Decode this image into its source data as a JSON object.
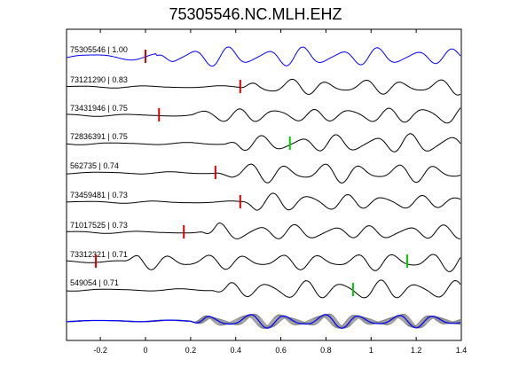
{
  "figure": {
    "title": "75305546.NC.MLH.EHZ"
  },
  "colors": {
    "reference_trace": "#0000ff",
    "trace": "#000000",
    "stack_trace": "#808080",
    "pick_red": "#dd0000",
    "pick_green": "#00cc00"
  },
  "chart_data": {
    "type": "line",
    "title": "75305546.NC.MLH.EHZ",
    "xlabel": "",
    "ylabel": "",
    "xlim": [
      -0.35,
      1.4
    ],
    "x_ticks": [
      -0.2,
      0,
      0.2,
      0.4,
      0.6,
      0.8,
      1.0,
      1.2,
      1.4
    ],
    "x_tick_labels": [
      "-0.2",
      "0",
      "0.2",
      "0.4",
      "0.6",
      "0.8",
      "1",
      "1.2",
      "1.4"
    ],
    "grid": false,
    "series": [
      {
        "label": "75305546 | 1.00",
        "event_id": "75305546",
        "correlation": 1.0,
        "pick_time": 0.0,
        "pick_color": "red"
      },
      {
        "label": "73121290 | 0.83",
        "event_id": "73121290",
        "correlation": 0.83,
        "pick_time": 0.42,
        "pick_color": "red"
      },
      {
        "label": "73431946 | 0.75",
        "event_id": "73431946",
        "correlation": 0.75,
        "pick_time": 0.06,
        "pick_color": "red"
      },
      {
        "label": "72836391 | 0.75",
        "event_id": "72836391",
        "correlation": 0.75,
        "pick_time": 0.64,
        "pick_color": "green"
      },
      {
        "label": "562735 | 0.74",
        "event_id": "562735",
        "correlation": 0.74,
        "pick_time": 0.31,
        "pick_color": "red"
      },
      {
        "label": "73459481 | 0.73",
        "event_id": "73459481",
        "correlation": 0.73,
        "pick_time": 0.42,
        "pick_color": "red"
      },
      {
        "label": "71017525 | 0.73",
        "event_id": "71017525",
        "correlation": 0.73,
        "pick_time": 0.17,
        "pick_color": "red"
      },
      {
        "label": "73312321 | 0.71",
        "event_id": "73312321",
        "correlation": 0.71,
        "pick_time": -0.22,
        "pick_color": "red",
        "secondary_pick_time": 1.16,
        "secondary_pick_color": "green"
      },
      {
        "label": "549054 | 0.71",
        "event_id": "549054",
        "correlation": 0.71,
        "pick_time": 0.92,
        "pick_color": "green"
      }
    ],
    "stack_row": {
      "description_hidden": true,
      "reference_event": "75305546"
    }
  }
}
